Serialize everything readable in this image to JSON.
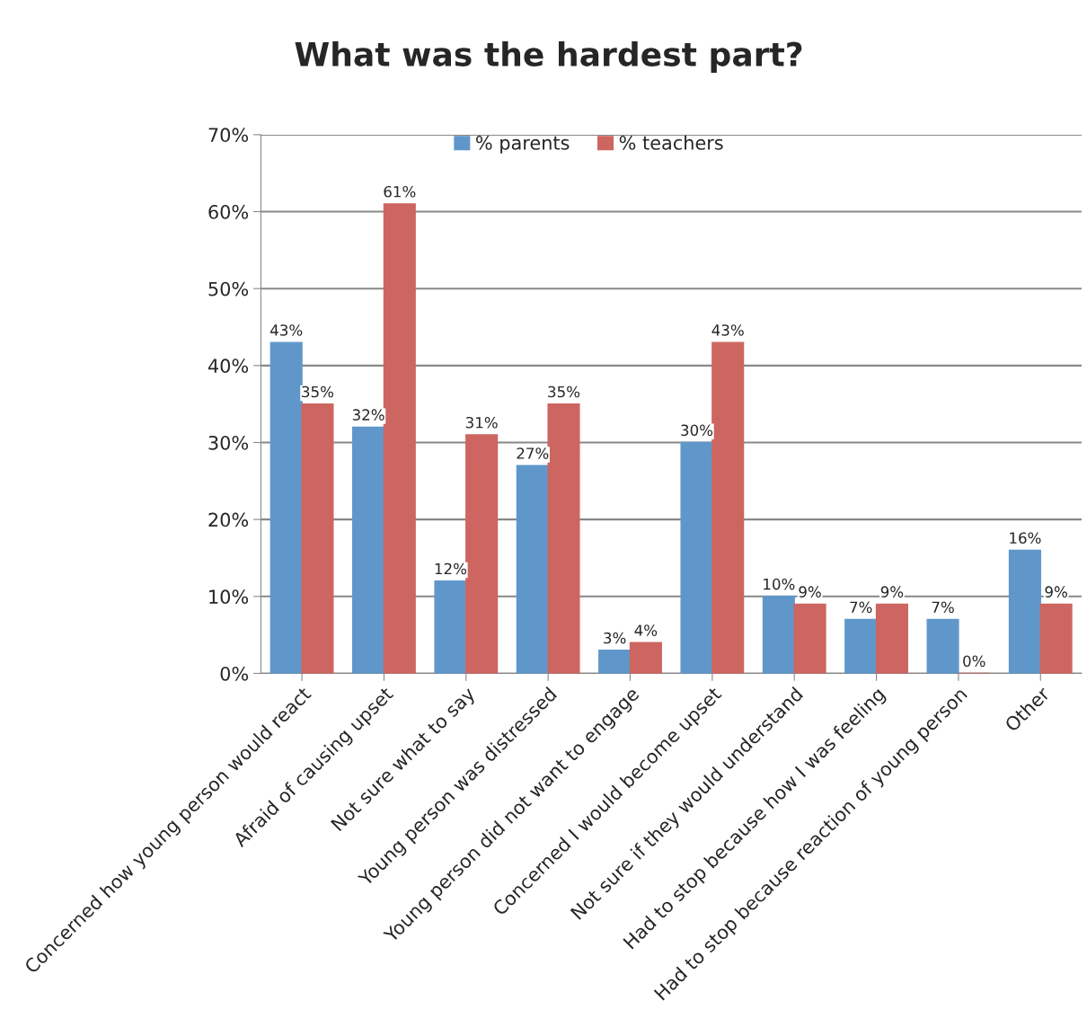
{
  "chart_data": {
    "type": "bar",
    "title": "What was the hardest part?",
    "categories": [
      "Concerned how young person would react",
      "Afraid of causing upset",
      "Not sure what to say",
      "Young person was distressed",
      "Young person did not want to engage",
      "Concerned I would become upset",
      "Not sure if they would understand",
      "Had to stop because how I was feeling",
      "Had to stop because reaction of young person",
      "Other"
    ],
    "series": [
      {
        "name": "% parents",
        "color": "#6097cb",
        "values": [
          43,
          32,
          12,
          27,
          3,
          30,
          10,
          7,
          7,
          16
        ],
        "value_labels": [
          "43%",
          "32%",
          "12%",
          "27%",
          "3%",
          "30%",
          "10%",
          "7%",
          "7%",
          "16%"
        ]
      },
      {
        "name": "% teachers",
        "color": "#cd6660",
        "values": [
          35,
          61,
          31,
          35,
          4,
          43,
          9,
          9,
          0,
          9
        ],
        "value_labels": [
          "35%",
          "61%",
          "31%",
          "35%",
          "4%",
          "43%",
          "9%",
          "9%",
          "0%",
          "9%"
        ]
      }
    ],
    "ylim": [
      0,
      70
    ],
    "yticks": [
      {
        "value": 0,
        "label": "0%"
      },
      {
        "value": 10,
        "label": "10%"
      },
      {
        "value": 20,
        "label": "20%"
      },
      {
        "value": 30,
        "label": "30%"
      },
      {
        "value": 40,
        "label": "40%"
      },
      {
        "value": 50,
        "label": "50%"
      },
      {
        "value": 60,
        "label": "60%"
      },
      {
        "value": 70,
        "label": "70%"
      }
    ],
    "grid": "y",
    "legend": "top"
  }
}
